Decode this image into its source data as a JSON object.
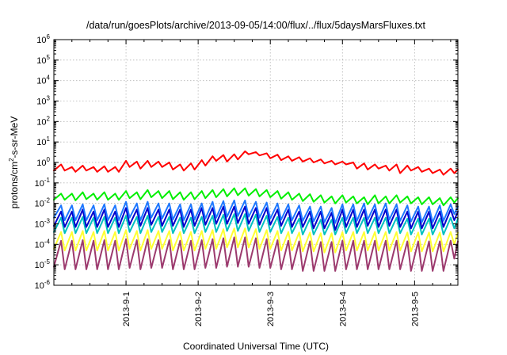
{
  "chart_data": {
    "type": "line",
    "title": "/data/run/goesPlots/archive/2013-09-05/14:00/flux/../flux/5daysMarsFluxes.txt",
    "xlabel": "Coordinated Universal Time (UTC)",
    "ylabel": {
      "base": "protons/cm",
      "sup": "2",
      "rest": "-s-sr-MeV"
    },
    "yscale": "log",
    "ylim": [
      1e-06,
      1000000.0
    ],
    "xlim": [
      0,
      5.6
    ],
    "x_unit": "days since 2013-08-31 00:00",
    "x_ticks": [
      {
        "value": 1,
        "label": "2013-9-1"
      },
      {
        "value": 2,
        "label": "2013-9-2"
      },
      {
        "value": 3,
        "label": "2013-9-3"
      },
      {
        "value": 4,
        "label": "2013-9-4"
      },
      {
        "value": 5,
        "label": "2013-9-5"
      }
    ],
    "y_ticks": [
      {
        "exp": -6
      },
      {
        "exp": -5
      },
      {
        "exp": -4
      },
      {
        "exp": -3
      },
      {
        "exp": -2
      },
      {
        "exp": -1
      },
      {
        "exp": 0
      },
      {
        "exp": 1
      },
      {
        "exp": 2
      },
      {
        "exp": 3
      },
      {
        "exp": 4
      },
      {
        "exp": 5
      },
      {
        "exp": 6
      }
    ],
    "grid": true,
    "legend": "none",
    "series": [
      {
        "color": "#ff0000",
        "x": [
          0,
          0.1,
          0.15,
          0.25,
          0.3,
          0.4,
          0.45,
          0.55,
          0.6,
          0.7,
          0.75,
          0.85,
          0.9,
          1.0,
          1.05,
          1.15,
          1.2,
          1.3,
          1.35,
          1.45,
          1.5,
          1.6,
          1.65,
          1.75,
          1.8,
          1.9,
          1.95,
          2.05,
          2.1,
          2.2,
          2.25,
          2.35,
          2.4,
          2.5,
          2.55,
          2.65,
          2.7,
          2.8,
          2.85,
          2.95,
          3.0,
          3.1,
          3.15,
          3.25,
          3.3,
          3.4,
          3.45,
          3.55,
          3.6,
          3.7,
          3.75,
          3.85,
          3.9,
          4.0,
          4.05,
          4.15,
          4.2,
          4.3,
          4.35,
          4.45,
          4.5,
          4.6,
          4.65,
          4.75,
          4.8,
          4.9,
          4.95,
          5.05,
          5.1,
          5.2,
          5.25,
          5.35,
          5.4,
          5.5,
          5.55,
          5.6
        ],
        "y": [
          0.4,
          0.8,
          0.4,
          0.6,
          0.35,
          0.7,
          0.4,
          0.6,
          0.35,
          0.65,
          0.35,
          0.6,
          0.35,
          1.2,
          0.6,
          1.1,
          0.5,
          1.2,
          0.6,
          1.1,
          0.6,
          1.0,
          0.45,
          0.8,
          0.4,
          0.9,
          0.45,
          1.3,
          0.7,
          2.0,
          1.2,
          2.3,
          1.1,
          2.5,
          1.4,
          3.5,
          2.5,
          3.2,
          2.2,
          2.8,
          1.6,
          2.4,
          1.3,
          2.0,
          1.2,
          1.8,
          1.1,
          1.6,
          1.0,
          1.4,
          0.9,
          1.2,
          0.8,
          1.1,
          0.8,
          1.0,
          0.5,
          0.9,
          0.45,
          0.8,
          0.5,
          0.7,
          0.4,
          0.8,
          0.3,
          0.7,
          0.4,
          0.6,
          0.35,
          0.5,
          0.3,
          0.45,
          0.25,
          0.5,
          0.3,
          0.45
        ]
      },
      {
        "color": "#00ee00",
        "x": [
          0,
          0.1,
          0.15,
          0.25,
          0.3,
          0.4,
          0.45,
          0.55,
          0.6,
          0.7,
          0.75,
          0.85,
          0.9,
          1.0,
          1.05,
          1.15,
          1.2,
          1.3,
          1.35,
          1.45,
          1.5,
          1.6,
          1.65,
          1.75,
          1.8,
          1.9,
          1.95,
          2.05,
          2.1,
          2.2,
          2.25,
          2.35,
          2.4,
          2.5,
          2.55,
          2.65,
          2.7,
          2.8,
          2.85,
          2.95,
          3.0,
          3.1,
          3.15,
          3.25,
          3.3,
          3.4,
          3.45,
          3.55,
          3.6,
          3.7,
          3.75,
          3.85,
          3.9,
          4.0,
          4.05,
          4.15,
          4.2,
          4.3,
          4.35,
          4.45,
          4.5,
          4.6,
          4.65,
          4.75,
          4.8,
          4.9,
          4.95,
          5.05,
          5.1,
          5.2,
          5.25,
          5.35,
          5.4,
          5.5,
          5.55,
          5.6
        ],
        "y": [
          0.015,
          0.03,
          0.015,
          0.03,
          0.014,
          0.035,
          0.016,
          0.03,
          0.015,
          0.035,
          0.015,
          0.03,
          0.015,
          0.04,
          0.018,
          0.035,
          0.016,
          0.045,
          0.02,
          0.04,
          0.018,
          0.04,
          0.016,
          0.035,
          0.015,
          0.035,
          0.016,
          0.04,
          0.018,
          0.045,
          0.02,
          0.05,
          0.022,
          0.055,
          0.025,
          0.055,
          0.024,
          0.05,
          0.022,
          0.045,
          0.02,
          0.04,
          0.017,
          0.035,
          0.015,
          0.03,
          0.013,
          0.028,
          0.012,
          0.025,
          0.011,
          0.022,
          0.01,
          0.025,
          0.011,
          0.022,
          0.01,
          0.02,
          0.009,
          0.025,
          0.01,
          0.022,
          0.01,
          0.025,
          0.011,
          0.022,
          0.01,
          0.02,
          0.009,
          0.02,
          0.009,
          0.018,
          0.008,
          0.02,
          0.011,
          0.018
        ]
      },
      {
        "color": "#1e78ff",
        "x": [
          0,
          0.1,
          0.15,
          0.25,
          0.3,
          0.4,
          0.45,
          0.55,
          0.6,
          0.7,
          0.75,
          0.85,
          0.9,
          1.0,
          1.05,
          1.15,
          1.2,
          1.3,
          1.35,
          1.45,
          1.5,
          1.6,
          1.65,
          1.75,
          1.8,
          1.9,
          1.95,
          2.05,
          2.1,
          2.2,
          2.25,
          2.35,
          2.4,
          2.5,
          2.55,
          2.65,
          2.7,
          2.8,
          2.85,
          2.95,
          3.0,
          3.1,
          3.15,
          3.25,
          3.3,
          3.4,
          3.45,
          3.55,
          3.6,
          3.7,
          3.75,
          3.85,
          3.9,
          4.0,
          4.05,
          4.15,
          4.2,
          4.3,
          4.35,
          4.45,
          4.5,
          4.6,
          4.65,
          4.75,
          4.8,
          4.9,
          4.95,
          5.05,
          5.1,
          5.2,
          5.25,
          5.35,
          5.4,
          5.5,
          5.55,
          5.6
        ],
        "y": [
          0.002,
          0.008,
          0.0015,
          0.008,
          0.0015,
          0.009,
          0.0015,
          0.008,
          0.0015,
          0.009,
          0.0015,
          0.008,
          0.0015,
          0.012,
          0.002,
          0.01,
          0.0015,
          0.012,
          0.002,
          0.01,
          0.0018,
          0.01,
          0.0016,
          0.009,
          0.0015,
          0.009,
          0.0016,
          0.01,
          0.0018,
          0.012,
          0.002,
          0.013,
          0.0022,
          0.014,
          0.0024,
          0.014,
          0.0022,
          0.012,
          0.002,
          0.011,
          0.0018,
          0.01,
          0.0016,
          0.009,
          0.0015,
          0.008,
          0.0014,
          0.007,
          0.0013,
          0.007,
          0.0012,
          0.006,
          0.0011,
          0.009,
          0.0015,
          0.009,
          0.0014,
          0.01,
          0.0016,
          0.009,
          0.0015,
          0.01,
          0.0016,
          0.009,
          0.0014,
          0.008,
          0.0013,
          0.007,
          0.0012,
          0.007,
          0.0012,
          0.008,
          0.0014,
          0.009,
          0.003,
          0.007
        ]
      },
      {
        "color": "#0000cc",
        "x": [
          0,
          0.1,
          0.15,
          0.25,
          0.3,
          0.4,
          0.45,
          0.55,
          0.6,
          0.7,
          0.75,
          0.85,
          0.9,
          1.0,
          1.05,
          1.15,
          1.2,
          1.3,
          1.35,
          1.45,
          1.5,
          1.6,
          1.65,
          1.75,
          1.8,
          1.9,
          1.95,
          2.05,
          2.1,
          2.2,
          2.25,
          2.35,
          2.4,
          2.5,
          2.55,
          2.65,
          2.7,
          2.8,
          2.85,
          2.95,
          3.0,
          3.1,
          3.15,
          3.25,
          3.3,
          3.4,
          3.45,
          3.55,
          3.6,
          3.7,
          3.75,
          3.85,
          3.9,
          4.0,
          4.05,
          4.15,
          4.2,
          4.3,
          4.35,
          4.45,
          4.5,
          4.6,
          4.65,
          4.75,
          4.8,
          4.9,
          4.95,
          5.05,
          5.1,
          5.2,
          5.25,
          5.35,
          5.4,
          5.5,
          5.55,
          5.6
        ],
        "y": [
          0.0008,
          0.004,
          0.0007,
          0.004,
          0.0007,
          0.005,
          0.0007,
          0.004,
          0.0007,
          0.005,
          0.0007,
          0.004,
          0.0007,
          0.006,
          0.0009,
          0.005,
          0.0008,
          0.006,
          0.0009,
          0.005,
          0.0008,
          0.005,
          0.0008,
          0.005,
          0.0007,
          0.005,
          0.0008,
          0.006,
          0.0009,
          0.006,
          0.001,
          0.007,
          0.001,
          0.007,
          0.0011,
          0.007,
          0.001,
          0.006,
          0.0009,
          0.006,
          0.0009,
          0.005,
          0.0008,
          0.005,
          0.0007,
          0.004,
          0.0007,
          0.004,
          0.0006,
          0.004,
          0.0006,
          0.0035,
          0.0005,
          0.005,
          0.0007,
          0.005,
          0.0007,
          0.005,
          0.0008,
          0.005,
          0.0007,
          0.005,
          0.0008,
          0.005,
          0.0007,
          0.004,
          0.0006,
          0.004,
          0.0006,
          0.004,
          0.0006,
          0.004,
          0.0007,
          0.005,
          0.0015,
          0.004
        ]
      },
      {
        "color": "#00c0c0",
        "x": [
          0,
          0.1,
          0.15,
          0.25,
          0.3,
          0.4,
          0.45,
          0.55,
          0.6,
          0.7,
          0.75,
          0.85,
          0.9,
          1.0,
          1.05,
          1.15,
          1.2,
          1.3,
          1.35,
          1.45,
          1.5,
          1.6,
          1.65,
          1.75,
          1.8,
          1.9,
          1.95,
          2.05,
          2.1,
          2.2,
          2.25,
          2.35,
          2.4,
          2.5,
          2.55,
          2.65,
          2.7,
          2.8,
          2.85,
          2.95,
          3.0,
          3.1,
          3.15,
          3.25,
          3.3,
          3.4,
          3.45,
          3.55,
          3.6,
          3.7,
          3.75,
          3.85,
          3.9,
          4.0,
          4.05,
          4.15,
          4.2,
          4.3,
          4.35,
          4.45,
          4.5,
          4.6,
          4.65,
          4.75,
          4.8,
          4.9,
          4.95,
          5.05,
          5.1,
          5.2,
          5.25,
          5.35,
          5.4,
          5.5,
          5.55,
          5.6
        ],
        "y": [
          0.0004,
          0.002,
          0.00035,
          0.002,
          0.00035,
          0.0022,
          0.00035,
          0.002,
          0.00035,
          0.0022,
          0.00035,
          0.002,
          0.00035,
          0.0025,
          0.0004,
          0.0022,
          0.00035,
          0.0025,
          0.0004,
          0.0022,
          0.0004,
          0.0022,
          0.00035,
          0.002,
          0.00035,
          0.002,
          0.00035,
          0.0022,
          0.0004,
          0.0025,
          0.0004,
          0.0028,
          0.00045,
          0.003,
          0.00045,
          0.003,
          0.00045,
          0.0028,
          0.0004,
          0.0025,
          0.0004,
          0.0022,
          0.00035,
          0.002,
          0.00035,
          0.0018,
          0.0003,
          0.0018,
          0.0003,
          0.0016,
          0.0003,
          0.0016,
          0.0003,
          0.002,
          0.00035,
          0.002,
          0.00035,
          0.002,
          0.00035,
          0.002,
          0.00035,
          0.002,
          0.00035,
          0.002,
          0.00035,
          0.0018,
          0.0003,
          0.0018,
          0.0003,
          0.0018,
          0.0003,
          0.0018,
          0.0003,
          0.002,
          0.0006,
          0.0018
        ]
      },
      {
        "color": "#ffff33",
        "x": [
          0,
          0.1,
          0.15,
          0.25,
          0.3,
          0.4,
          0.45,
          0.55,
          0.6,
          0.7,
          0.75,
          0.85,
          0.9,
          1.0,
          1.05,
          1.15,
          1.2,
          1.3,
          1.35,
          1.45,
          1.5,
          1.6,
          1.65,
          1.75,
          1.8,
          1.9,
          1.95,
          2.05,
          2.1,
          2.2,
          2.25,
          2.35,
          2.4,
          2.5,
          2.55,
          2.65,
          2.7,
          2.8,
          2.85,
          2.95,
          3.0,
          3.1,
          3.15,
          3.25,
          3.3,
          3.4,
          3.45,
          3.55,
          3.6,
          3.7,
          3.75,
          3.85,
          3.9,
          4.0,
          4.05,
          4.15,
          4.2,
          4.3,
          4.35,
          4.45,
          4.5,
          4.6,
          4.65,
          4.75,
          4.8,
          4.9,
          4.95,
          5.05,
          5.1,
          5.2,
          5.25,
          5.35,
          5.4,
          5.5,
          5.55,
          5.6
        ],
        "y": [
          6e-05,
          0.0004,
          5e-05,
          0.0004,
          5e-05,
          0.00045,
          5e-05,
          0.0004,
          5e-05,
          0.00045,
          5e-05,
          0.0004,
          5e-05,
          0.0005,
          6e-05,
          0.00045,
          5e-05,
          0.0005,
          6e-05,
          0.00045,
          6e-05,
          0.00045,
          5e-05,
          0.0004,
          5e-05,
          0.0004,
          5e-05,
          0.00045,
          6e-05,
          0.0005,
          6e-05,
          0.00055,
          7e-05,
          0.0006,
          7e-05,
          0.0006,
          7e-05,
          0.00055,
          6e-05,
          0.0005,
          6e-05,
          0.00045,
          5e-05,
          0.0004,
          5e-05,
          0.00038,
          4.5e-05,
          0.00038,
          4.5e-05,
          0.00035,
          4e-05,
          0.00035,
          4e-05,
          0.0004,
          5e-05,
          0.0004,
          5e-05,
          0.0004,
          5e-05,
          0.0004,
          5e-05,
          0.0004,
          5e-05,
          0.0004,
          5e-05,
          0.00038,
          4.5e-05,
          0.00038,
          4.5e-05,
          0.00038,
          4.5e-05,
          0.00038,
          4.5e-05,
          0.0004,
          0.0001,
          0.00038
        ]
      },
      {
        "color": "#9c3a6e",
        "x": [
          0,
          0.1,
          0.15,
          0.25,
          0.3,
          0.4,
          0.45,
          0.55,
          0.6,
          0.7,
          0.75,
          0.85,
          0.9,
          1.0,
          1.05,
          1.15,
          1.2,
          1.3,
          1.35,
          1.45,
          1.5,
          1.6,
          1.65,
          1.75,
          1.8,
          1.9,
          1.95,
          2.05,
          2.1,
          2.2,
          2.25,
          2.35,
          2.4,
          2.5,
          2.55,
          2.65,
          2.7,
          2.8,
          2.85,
          2.95,
          3.0,
          3.1,
          3.15,
          3.25,
          3.3,
          3.4,
          3.45,
          3.55,
          3.6,
          3.7,
          3.75,
          3.85,
          3.9,
          4.0,
          4.05,
          4.15,
          4.2,
          4.3,
          4.35,
          4.45,
          4.5,
          4.6,
          4.65,
          4.75,
          4.8,
          4.9,
          4.95,
          5.05,
          5.1,
          5.2,
          5.25,
          5.35,
          5.4,
          5.5,
          5.55,
          5.6
        ],
        "y": [
          8e-06,
          0.00015,
          6e-06,
          0.00015,
          6e-06,
          0.00016,
          6e-06,
          0.00015,
          6e-06,
          0.00016,
          6e-06,
          0.00015,
          6e-06,
          0.00018,
          7e-06,
          0.00016,
          6e-06,
          0.00018,
          7e-06,
          0.00016,
          7e-06,
          0.00016,
          6e-06,
          0.00015,
          6e-06,
          0.00015,
          6e-06,
          0.00016,
          7e-06,
          0.00018,
          7e-06,
          0.0002,
          8e-06,
          0.00022,
          8e-06,
          0.00022,
          8e-06,
          0.0002,
          7e-06,
          0.00018,
          7e-06,
          0.00016,
          6e-06,
          0.00015,
          6e-06,
          0.00014,
          5e-06,
          0.00014,
          5e-06,
          0.00013,
          5e-06,
          0.00013,
          5e-06,
          0.00015,
          6e-06,
          0.00015,
          6e-06,
          0.00015,
          6e-06,
          0.00015,
          6e-06,
          0.00015,
          6e-06,
          0.00015,
          6e-06,
          0.00014,
          5e-06,
          0.00014,
          5e-06,
          0.00014,
          5e-06,
          0.00014,
          5e-06,
          0.00015,
          2e-05,
          0.00014
        ]
      }
    ]
  }
}
